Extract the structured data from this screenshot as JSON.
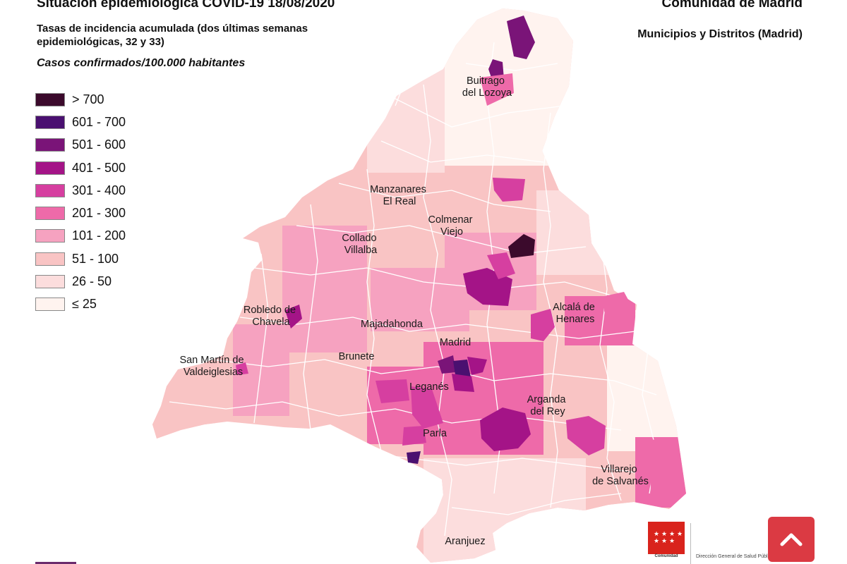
{
  "header": {
    "title": "Situación epidemiológica COVID-19  18/08/2020",
    "subtitle": "Tasas de incidencia acumulada (dos últimas semanas epidemiológicas, 32 y 33)",
    "unit": "Casos confirmados/100.000 habitantes",
    "region": "Comunidad de Madrid",
    "scope": "Municipios y Distritos (Madrid)"
  },
  "legend": [
    {
      "label": "> 700",
      "color": "#3b0a2c"
    },
    {
      "label": "601 - 700",
      "color": "#4a1070"
    },
    {
      "label": "501 - 600",
      "color": "#7a1478"
    },
    {
      "label": "401 - 500",
      "color": "#a41487"
    },
    {
      "label": "301 - 400",
      "color": "#d63fa0"
    },
    {
      "label": "201 - 300",
      "color": "#ee6aa9"
    },
    {
      "label": "101 - 200",
      "color": "#f6a2c0"
    },
    {
      "label": "51 - 100",
      "color": "#f9c4c4"
    },
    {
      "label": "26 - 50",
      "color": "#fcdddd"
    },
    {
      "label": "≤ 25",
      "color": "#fff3ef"
    }
  ],
  "map": {
    "outline_color": "#ffffff",
    "places": [
      {
        "name": "Buitrago\ndel Lozoya"
      },
      {
        "name": "Manzanares\nEl Real"
      },
      {
        "name": "Colmenar\nViejo"
      },
      {
        "name": "Collado\nVillalba"
      },
      {
        "name": "Robledo de\nChavela"
      },
      {
        "name": "Majadahonda"
      },
      {
        "name": "Alcalá de\nHenares"
      },
      {
        "name": "San Martín de\nValdeiglesias"
      },
      {
        "name": "Madrid"
      },
      {
        "name": "Brunete"
      },
      {
        "name": "Leganés"
      },
      {
        "name": "Arganda\ndel Rey"
      },
      {
        "name": "Parla"
      },
      {
        "name": "Villarejo\nde Salvanés"
      },
      {
        "name": "Aranjuez"
      }
    ]
  },
  "footer": {
    "logo_text": "Comunidad",
    "department": "Dirección General de Salud Pública",
    "logo_color": "#d9231c",
    "button_color": "#db3a43",
    "button_icon": "chevron-up-icon"
  }
}
